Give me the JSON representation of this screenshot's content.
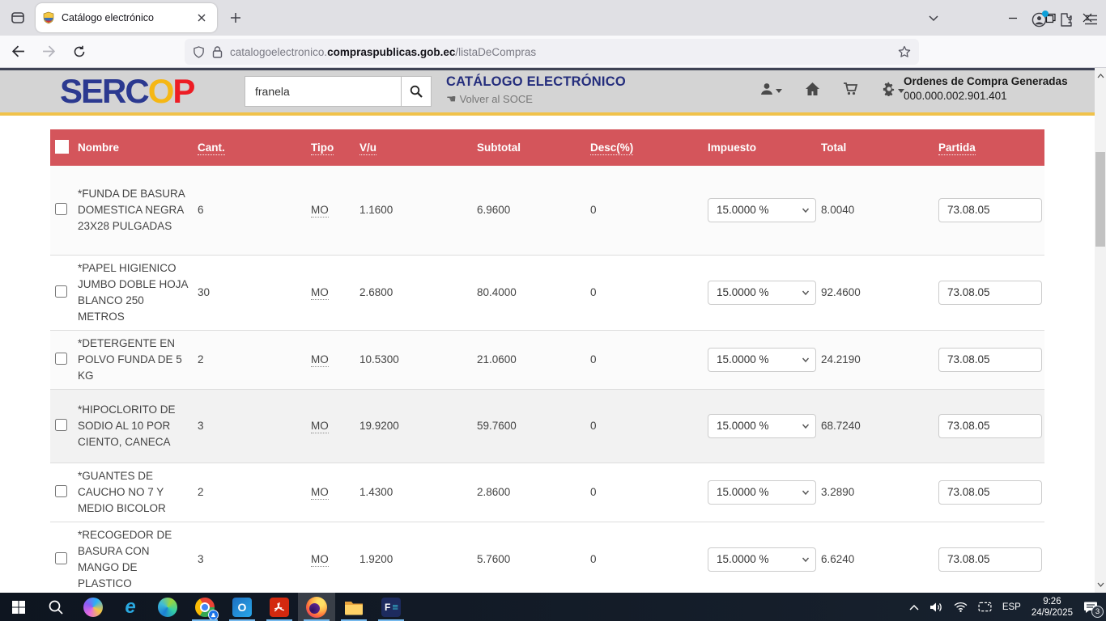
{
  "browser": {
    "tab_title": "Catálogo electrónico",
    "url": {
      "prefix": "catalogoelectronico.",
      "domain": "compraspublicas.gob.ec",
      "path": "/listaDeCompras"
    }
  },
  "site_header": {
    "logo_ser": "SER",
    "logo_c": "C",
    "logo_o": "O",
    "logo_p": "P",
    "search_value": "franela",
    "title": "CATÁLOGO ELECTRÓNICO",
    "back_icon": "☚",
    "back_link": "Volver al SOCE",
    "orders_label": "Ordenes de Compra Generadas",
    "orders_number": "000.000.002.901.401"
  },
  "table": {
    "headers": {
      "name": "Nombre",
      "qty": "Cant.",
      "type": "Tipo",
      "unit": "V/u",
      "subtotal": "Subtotal",
      "discount": "Desc(%)",
      "tax": "Impuesto",
      "total": "Total",
      "item": "Partida"
    },
    "rows": [
      {
        "name": "*FUNDA DE BASURA DOMESTICA NEGRA 23X28 PULGADAS",
        "qty": "6",
        "type": "MO",
        "unit": "1.1600",
        "subtotal": "6.9600",
        "discount": "0",
        "tax": "15.0000 %",
        "total": "8.0040",
        "item": "73.08.05"
      },
      {
        "name": "*PAPEL HIGIENICO JUMBO DOBLE HOJA BLANCO 250 METROS",
        "qty": "30",
        "type": "MO",
        "unit": "2.6800",
        "subtotal": "80.4000",
        "discount": "0",
        "tax": "15.0000 %",
        "total": "92.4600",
        "item": "73.08.05"
      },
      {
        "name": "*DETERGENTE EN POLVO FUNDA DE 5 KG",
        "qty": "2",
        "type": "MO",
        "unit": "10.5300",
        "subtotal": "21.0600",
        "discount": "0",
        "tax": "15.0000 %",
        "total": "24.2190",
        "item": "73.08.05"
      },
      {
        "name": "*HIPOCLORITO DE SODIO AL 10 POR CIENTO, CANECA",
        "qty": "3",
        "type": "MO",
        "unit": "19.9200",
        "subtotal": "59.7600",
        "discount": "0",
        "tax": "15.0000 %",
        "total": "68.7240",
        "item": "73.08.05"
      },
      {
        "name": "*GUANTES DE CAUCHO NO 7 Y MEDIO BICOLOR",
        "qty": "2",
        "type": "MO",
        "unit": "1.4300",
        "subtotal": "2.8600",
        "discount": "0",
        "tax": "15.0000 %",
        "total": "3.2890",
        "item": "73.08.05"
      },
      {
        "name": "*RECOGEDOR DE BASURA CON MANGO DE PLASTICO",
        "qty": "3",
        "type": "MO",
        "unit": "1.9200",
        "subtotal": "5.7600",
        "discount": "0",
        "tax": "15.0000 %",
        "total": "6.6240",
        "item": "73.08.05"
      }
    ]
  },
  "taskbar": {
    "language": "ESP",
    "time": "9:26",
    "date": "24/9/2025",
    "notifications": "3"
  }
}
